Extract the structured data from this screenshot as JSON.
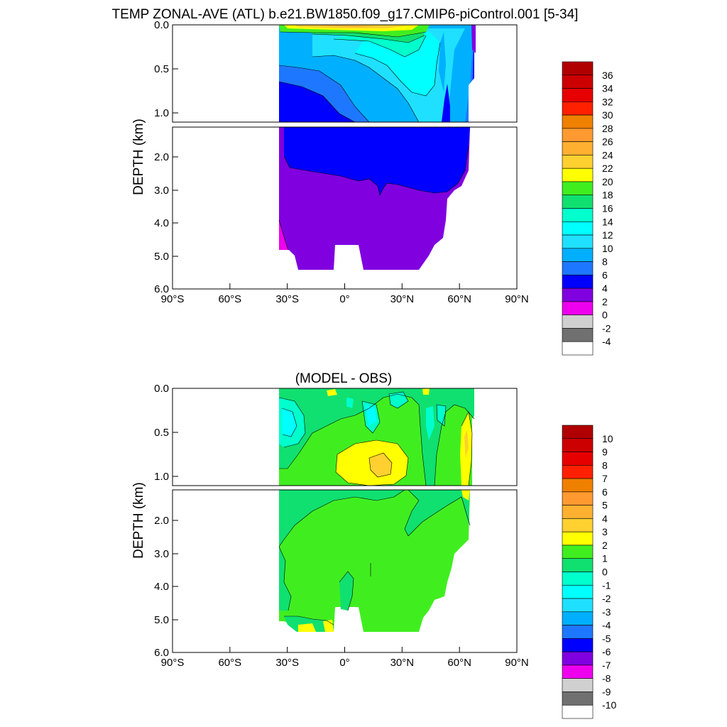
{
  "chart_data": [
    {
      "type": "contour",
      "title": "TEMP ZONAL-AVE (ATL) b.e21.BW1850.f09_g17.CMIP6-piControl.001 [5-34]",
      "ylabel": "DEPTH (km)",
      "x_ticks": [
        {
          "value": -90,
          "label": "90°S"
        },
        {
          "value": -60,
          "label": "60°S"
        },
        {
          "value": -30,
          "label": "30°S"
        },
        {
          "value": 0,
          "label": "0°"
        },
        {
          "value": 30,
          "label": "30°N"
        },
        {
          "value": 60,
          "label": "60°N"
        },
        {
          "value": 90,
          "label": "90°N"
        }
      ],
      "xlim": [
        -90,
        90
      ],
      "upper_panel": {
        "ylim": [
          0,
          1.1
        ],
        "y_ticks": [
          "0.0",
          "0.5",
          "1.0"
        ]
      },
      "lower_panel": {
        "ylim": [
          1.1,
          6.0
        ],
        "y_ticks": [
          "2.0",
          "3.0",
          "4.0",
          "5.0",
          "6.0"
        ]
      },
      "colorbar_labels": [
        "36",
        "34",
        "32",
        "30",
        "28",
        "26",
        "24",
        "22",
        "20",
        "18",
        "16",
        "14",
        "12",
        "10",
        "8",
        "6",
        "4",
        "2",
        "0",
        "-2",
        "-4"
      ],
      "colorbar_colors": [
        "#b00000",
        "#cc0000",
        "#e60000",
        "#ff2000",
        "#f08000",
        "#ff9a30",
        "#ffb030",
        "#ffd030",
        "#ffff00",
        "#40ee20",
        "#10e070",
        "#00ffcc",
        "#00ffff",
        "#20e0ff",
        "#00b0ff",
        "#1e78ff",
        "#0000ff",
        "#8000e0",
        "#ee00ee",
        "#d0d0d0",
        "#707070",
        "#ffffff"
      ]
    },
    {
      "type": "contour",
      "title": "(MODEL - OBS)",
      "ylabel": "DEPTH (km)",
      "x_ticks": [
        {
          "value": -90,
          "label": "90°S"
        },
        {
          "value": -60,
          "label": "60°S"
        },
        {
          "value": -30,
          "label": "30°S"
        },
        {
          "value": 0,
          "label": "0°"
        },
        {
          "value": 30,
          "label": "30°N"
        },
        {
          "value": 60,
          "label": "60°N"
        },
        {
          "value": 90,
          "label": "90°N"
        }
      ],
      "xlim": [
        -90,
        90
      ],
      "upper_panel": {
        "ylim": [
          0,
          1.1
        ],
        "y_ticks": [
          "0.0",
          "0.5",
          "1.0"
        ]
      },
      "lower_panel": {
        "ylim": [
          1.1,
          6.0
        ],
        "y_ticks": [
          "2.0",
          "3.0",
          "4.0",
          "5.0",
          "6.0"
        ]
      },
      "colorbar_labels": [
        "10",
        "9",
        "8",
        "7",
        "6",
        "5",
        "4",
        "3",
        "2",
        "1",
        "0",
        "-1",
        "-2",
        "-3",
        "-4",
        "-5",
        "-6",
        "-7",
        "-8",
        "-9",
        "-10"
      ],
      "colorbar_colors": [
        "#b00000",
        "#cc0000",
        "#e60000",
        "#ff2000",
        "#f08000",
        "#ff9a30",
        "#ffb030",
        "#ffd030",
        "#ffff00",
        "#40ee20",
        "#10e070",
        "#00ffcc",
        "#00ffff",
        "#20e0ff",
        "#00b0ff",
        "#1e78ff",
        "#0000ff",
        "#8000e0",
        "#ee00ee",
        "#d0d0d0",
        "#707070",
        "#ffffff"
      ]
    }
  ]
}
